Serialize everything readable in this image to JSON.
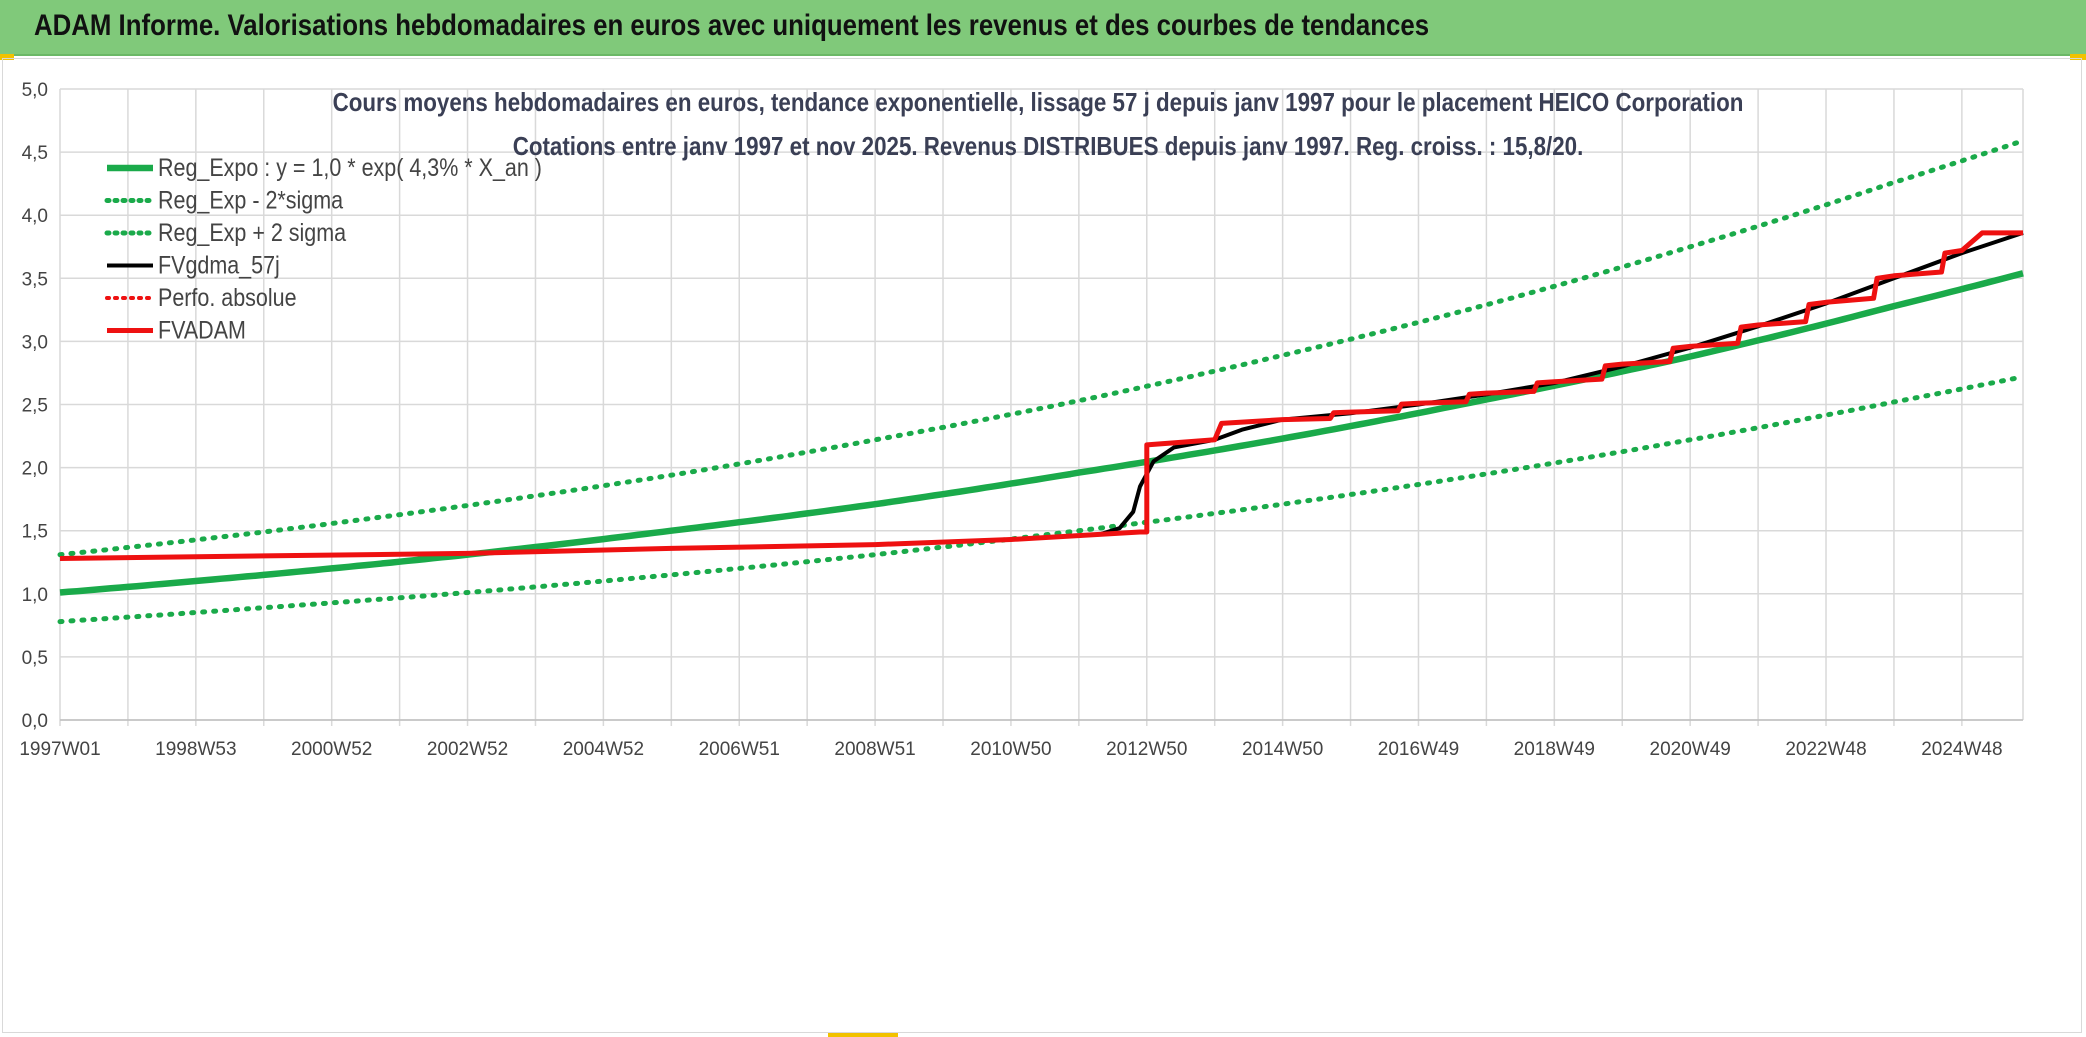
{
  "banner": {
    "title": "ADAM Informe. Valorisations hebdomadaires en euros avec uniquement les revenus et des courbes de tendances"
  },
  "colors": {
    "banner_bg": "#80c97a",
    "green": "#1aaa4a",
    "red": "#ee1111",
    "black": "#000000",
    "grid": "#d9d9d9"
  },
  "chart_data": {
    "type": "line",
    "title": "Cours moyens hebdomadaires en euros, tendance exponentielle, lissage 57 j depuis janv 1997 pour le placement HEICO Corporation",
    "subtitle": "Cotations entre janv 1997 et nov 2025. Revenus DISTRIBUES depuis janv 1997. Reg. croiss. : 15,8/20.",
    "xlabel": "",
    "ylabel": "",
    "xlim": [
      1997.0,
      2025.9
    ],
    "ylim": [
      0,
      5
    ],
    "y_ticks": [
      "0,0",
      "0,5",
      "1,0",
      "1,5",
      "2,0",
      "2,5",
      "3,0",
      "3,5",
      "4,0",
      "4,5",
      "5,0"
    ],
    "x_ticks": [
      {
        "label": "1997W01",
        "x": 1997.0
      },
      {
        "label": "1998W53",
        "x": 1999.0
      },
      {
        "label": "2000W52",
        "x": 2001.0
      },
      {
        "label": "2002W52",
        "x": 2003.0
      },
      {
        "label": "2004W52",
        "x": 2005.0
      },
      {
        "label": "2006W51",
        "x": 2007.0
      },
      {
        "label": "2008W51",
        "x": 2009.0
      },
      {
        "label": "2010W50",
        "x": 2011.0
      },
      {
        "label": "2012W50",
        "x": 2013.0
      },
      {
        "label": "2014W50",
        "x": 2015.0
      },
      {
        "label": "2016W49",
        "x": 2017.0
      },
      {
        "label": "2018W49",
        "x": 2019.0
      },
      {
        "label": "2020W49",
        "x": 2021.0
      },
      {
        "label": "2022W48",
        "x": 2023.0
      },
      {
        "label": "2024W48",
        "x": 2025.0
      }
    ],
    "grid": true,
    "legend_position": "top-left",
    "series": [
      {
        "name": "Reg_Expo : y = 1,0 * exp( 4,3% *  X_an )",
        "style": "solid",
        "color": "#1aaa4a",
        "points": [
          [
            1997.0,
            1.01
          ],
          [
            2000.0,
            1.15
          ],
          [
            2003.0,
            1.31
          ],
          [
            2006.0,
            1.5
          ],
          [
            2009.0,
            1.71
          ],
          [
            2012.0,
            1.96
          ],
          [
            2015.0,
            2.23
          ],
          [
            2018.0,
            2.54
          ],
          [
            2021.0,
            2.88
          ],
          [
            2024.0,
            3.28
          ],
          [
            2025.9,
            3.54
          ]
        ]
      },
      {
        "name": "Reg_Exp - 2*sigma",
        "style": "dotted",
        "color": "#1aaa4a",
        "points": [
          [
            1997.0,
            0.78
          ],
          [
            2000.0,
            0.89
          ],
          [
            2003.0,
            1.01
          ],
          [
            2006.0,
            1.15
          ],
          [
            2009.0,
            1.31
          ],
          [
            2012.0,
            1.5
          ],
          [
            2015.0,
            1.71
          ],
          [
            2018.0,
            1.95
          ],
          [
            2021.0,
            2.22
          ],
          [
            2024.0,
            2.52
          ],
          [
            2025.9,
            2.72
          ]
        ]
      },
      {
        "name": "Reg_Exp + 2 sigma",
        "style": "dotted",
        "color": "#1aaa4a",
        "points": [
          [
            1997.0,
            1.31
          ],
          [
            2000.0,
            1.49
          ],
          [
            2003.0,
            1.7
          ],
          [
            2006.0,
            1.94
          ],
          [
            2009.0,
            2.22
          ],
          [
            2012.0,
            2.53
          ],
          [
            2015.0,
            2.89
          ],
          [
            2018.0,
            3.29
          ],
          [
            2021.0,
            3.75
          ],
          [
            2024.0,
            4.26
          ],
          [
            2025.9,
            4.59
          ]
        ]
      },
      {
        "name": "FVgdma_57j",
        "style": "solid",
        "color": "#000000",
        "points": [
          [
            1997.0,
            1.28
          ],
          [
            2000.0,
            1.3
          ],
          [
            2003.0,
            1.32
          ],
          [
            2006.0,
            1.36
          ],
          [
            2009.0,
            1.39
          ],
          [
            2011.0,
            1.43
          ],
          [
            2012.3,
            1.47
          ],
          [
            2012.6,
            1.52
          ],
          [
            2012.8,
            1.65
          ],
          [
            2012.9,
            1.85
          ],
          [
            2013.1,
            2.05
          ],
          [
            2013.4,
            2.16
          ],
          [
            2014.0,
            2.22
          ],
          [
            2014.4,
            2.3
          ],
          [
            2015.0,
            2.38
          ],
          [
            2016.0,
            2.43
          ],
          [
            2017.0,
            2.5
          ],
          [
            2018.0,
            2.58
          ],
          [
            2019.0,
            2.67
          ],
          [
            2020.0,
            2.8
          ],
          [
            2021.0,
            2.95
          ],
          [
            2022.0,
            3.12
          ],
          [
            2023.0,
            3.3
          ],
          [
            2024.0,
            3.5
          ],
          [
            2025.0,
            3.7
          ],
          [
            2025.9,
            3.86
          ]
        ]
      },
      {
        "name": "Perfo. absolue",
        "style": "dotted",
        "color": "#ee1111",
        "points": []
      },
      {
        "name": "FVADAM",
        "style": "solid-step",
        "color": "#ee1111",
        "points": [
          [
            1997.0,
            1.28
          ],
          [
            2000.0,
            1.3
          ],
          [
            2003.0,
            1.32
          ],
          [
            2006.0,
            1.36
          ],
          [
            2009.0,
            1.39
          ],
          [
            2011.0,
            1.43
          ],
          [
            2012.9,
            1.49
          ],
          [
            2013.0,
            1.49
          ],
          [
            2013.0,
            2.18
          ],
          [
            2014.0,
            2.22
          ],
          [
            2014.1,
            2.35
          ],
          [
            2015.0,
            2.38
          ],
          [
            2016.0,
            2.44
          ],
          [
            2017.0,
            2.51
          ],
          [
            2018.0,
            2.59
          ],
          [
            2019.0,
            2.68
          ],
          [
            2020.0,
            2.82
          ],
          [
            2021.0,
            2.96
          ],
          [
            2022.0,
            3.13
          ],
          [
            2023.0,
            3.31
          ],
          [
            2024.0,
            3.52
          ],
          [
            2025.0,
            3.72
          ],
          [
            2025.3,
            3.86
          ],
          [
            2025.9,
            3.86
          ]
        ]
      }
    ]
  }
}
